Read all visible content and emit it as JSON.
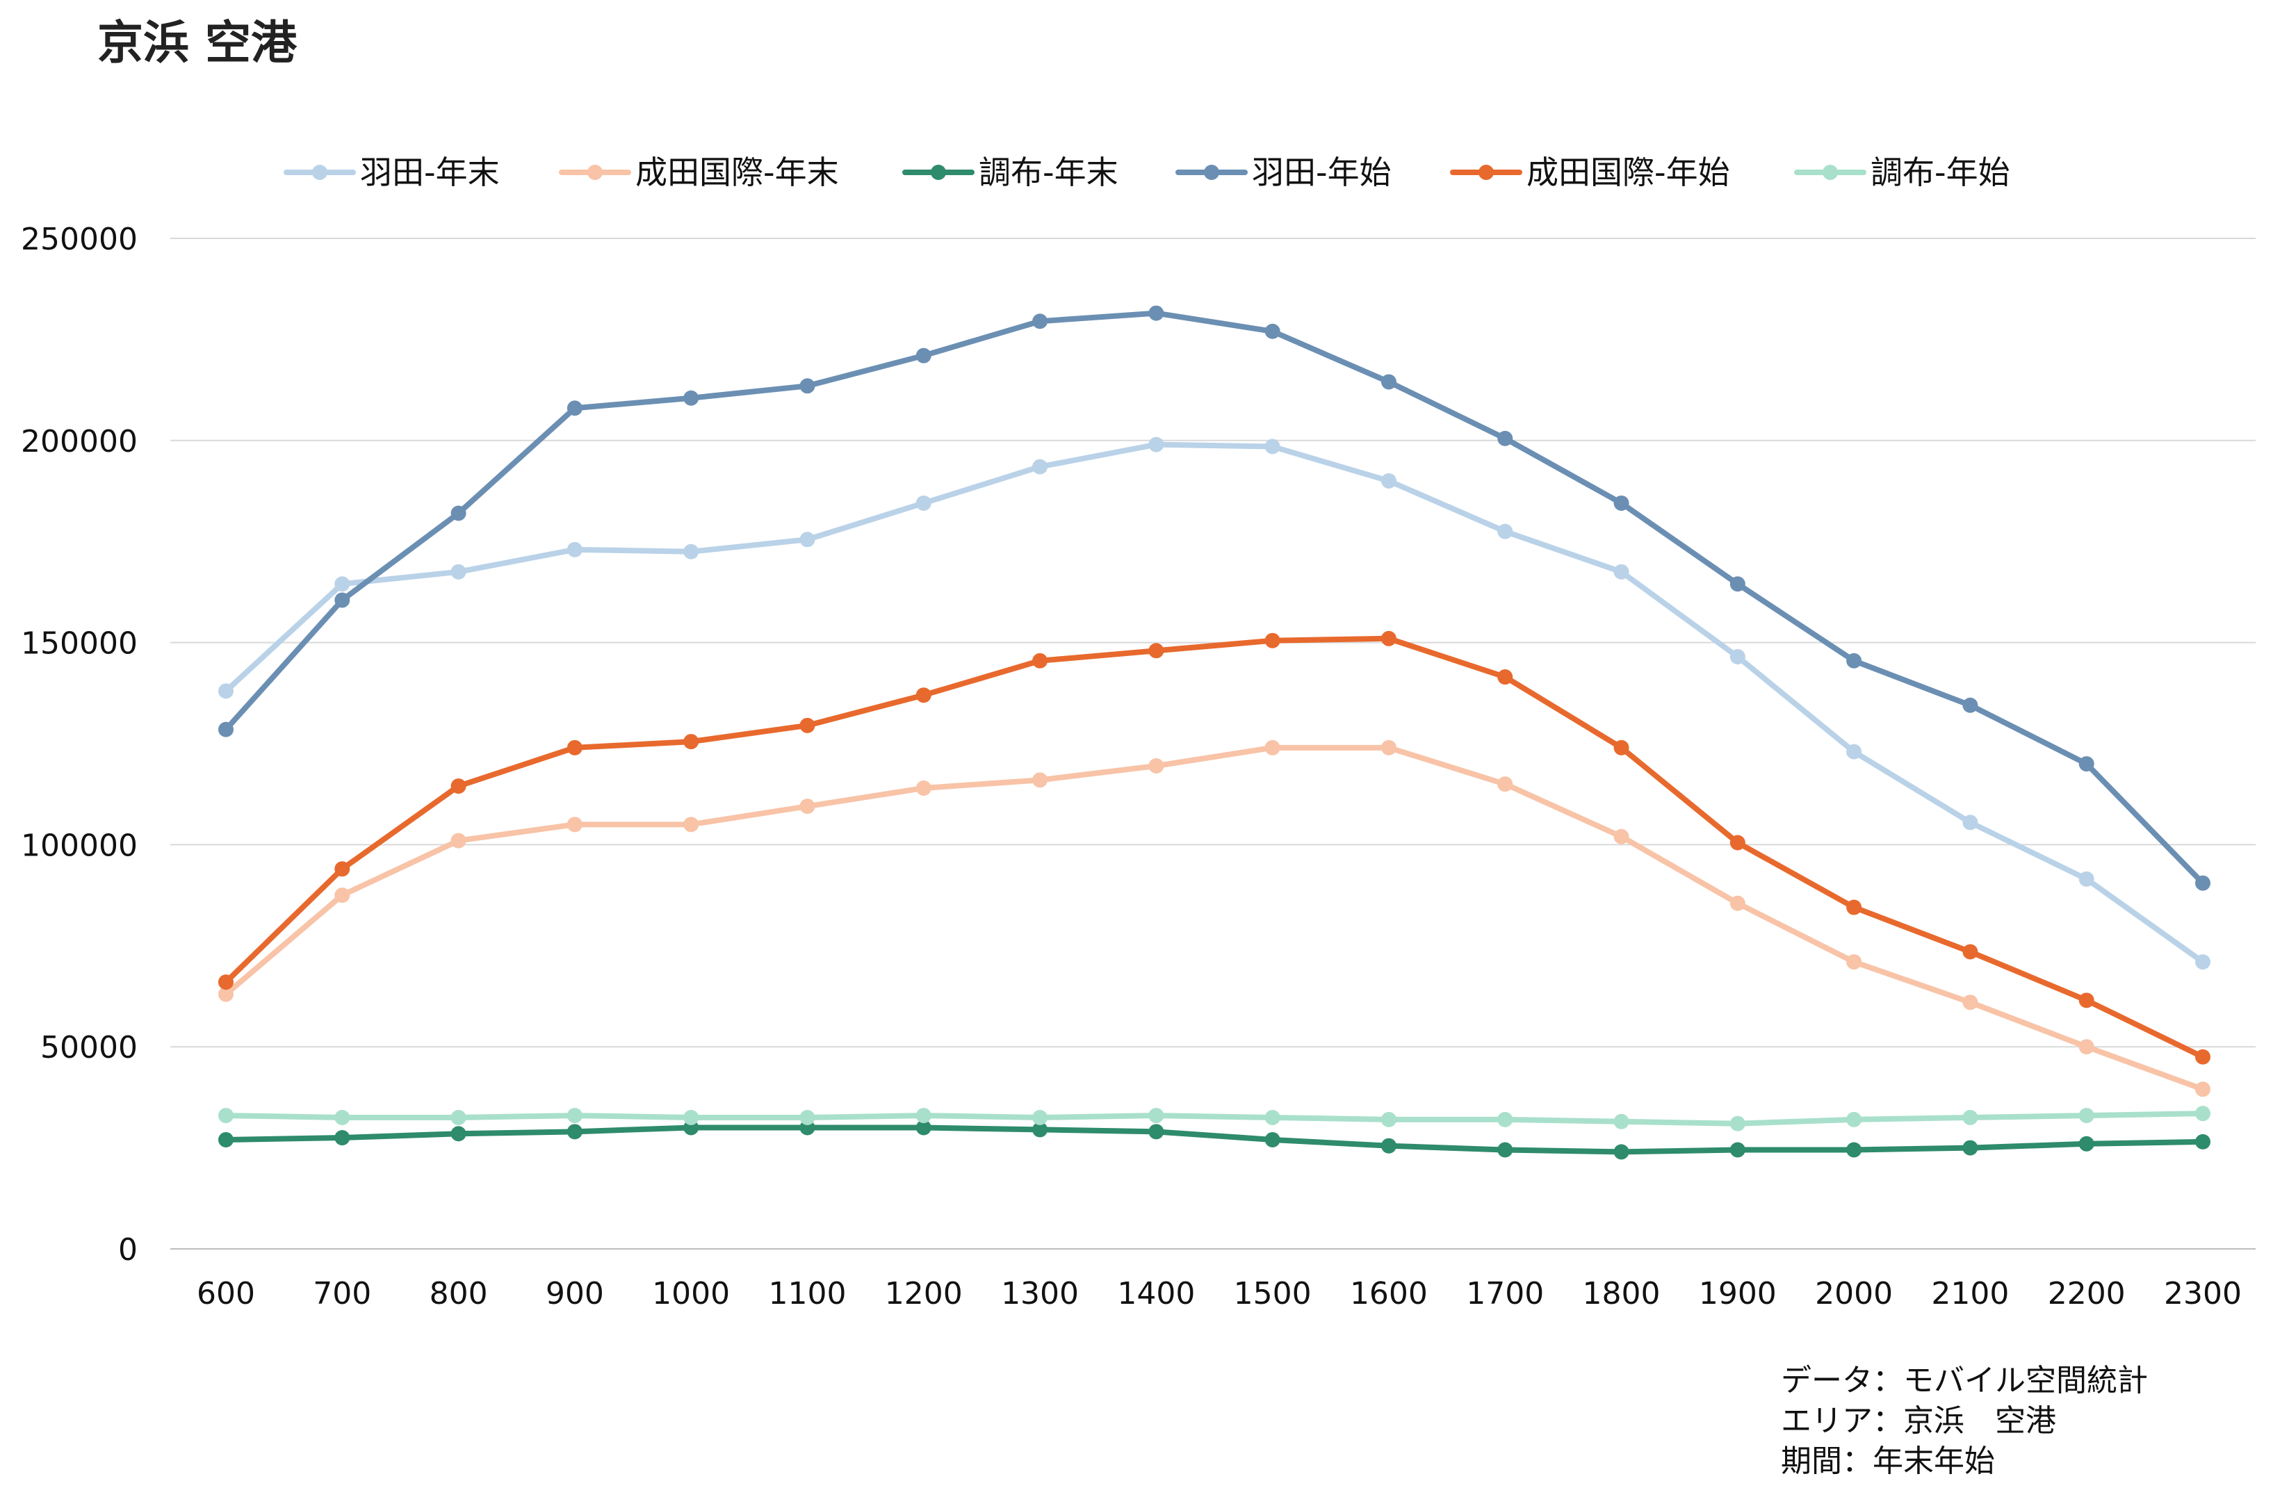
{
  "chart_data": {
    "type": "line",
    "title": "京浜 空港",
    "xlabel": "",
    "ylabel": "",
    "categories": [
      "600",
      "700",
      "800",
      "900",
      "1000",
      "1100",
      "1200",
      "1300",
      "1400",
      "1500",
      "1600",
      "1700",
      "1800",
      "1900",
      "2000",
      "2100",
      "2200",
      "2300"
    ],
    "yticks": [
      "0",
      "50000",
      "100000",
      "150000",
      "200000",
      "250000"
    ],
    "ylim": [
      0,
      250000
    ],
    "grid": true,
    "legend_position": "top",
    "series": [
      {
        "name": "羽田-年末",
        "color": "#b9d2e8",
        "values": [
          138000,
          164500,
          167500,
          173000,
          172500,
          175500,
          184500,
          193500,
          199000,
          198500,
          190000,
          177500,
          167500,
          146500,
          123000,
          105500,
          91500,
          71000
        ]
      },
      {
        "name": "成田国際-年末",
        "color": "#f8c3a7",
        "values": [
          63000,
          87500,
          101000,
          105000,
          105000,
          109500,
          114000,
          116000,
          119500,
          124000,
          124000,
          115000,
          102000,
          85500,
          71000,
          61000,
          50000,
          39500
        ]
      },
      {
        "name": "調布-年末",
        "color": "#2e8b6b",
        "values": [
          27000,
          27500,
          28500,
          29000,
          30000,
          30000,
          30000,
          29500,
          29000,
          27000,
          25500,
          24500,
          24000,
          24500,
          24500,
          25000,
          26000,
          26500
        ]
      },
      {
        "name": "羽田-年始",
        "color": "#6b8fb3",
        "values": [
          128500,
          160500,
          182000,
          208000,
          210500,
          213500,
          221000,
          229500,
          231500,
          227000,
          214500,
          200500,
          184500,
          164500,
          145500,
          134500,
          120000,
          90500
        ]
      },
      {
        "name": "成田国際-年始",
        "color": "#e8692d",
        "values": [
          66000,
          94000,
          114500,
          124000,
          125500,
          129500,
          137000,
          145500,
          148000,
          150500,
          151000,
          141500,
          124000,
          100500,
          84500,
          73500,
          61500,
          47500
        ]
      },
      {
        "name": "調布-年始",
        "color": "#a9e0cb",
        "values": [
          33000,
          32500,
          32500,
          33000,
          32500,
          32500,
          33000,
          32500,
          33000,
          32500,
          32000,
          32000,
          31500,
          31000,
          32000,
          32500,
          33000,
          33500
        ]
      }
    ]
  },
  "notes": {
    "line1": "データ：モバイル空間統計",
    "line2": "エリア：京浜　空港",
    "line3": "期間：年末年始"
  }
}
